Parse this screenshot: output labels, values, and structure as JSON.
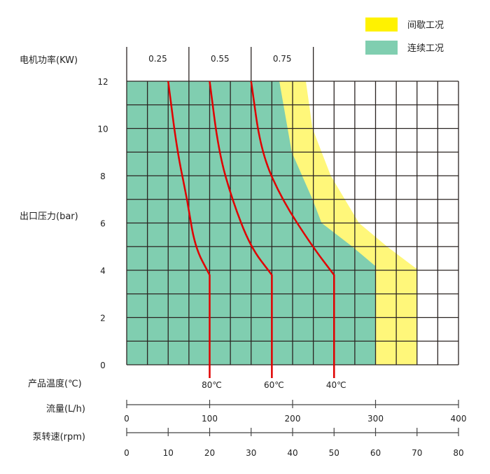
{
  "chart_data": {
    "type": "area",
    "xlabel": "流量(L/h)",
    "ylabel": "出口压力(bar)",
    "xlim": [
      0,
      400
    ],
    "ylim": [
      0,
      12
    ],
    "grid": true,
    "grid_x_step": 25,
    "grid_y_step": 1,
    "y_ticks": [
      0,
      2,
      4,
      6,
      8,
      10,
      12
    ],
    "legend_position": "top-right",
    "legend": [
      {
        "name": "间歇工况",
        "color": "#FFF200"
      },
      {
        "name": "连续工况",
        "color": "#80CEB0"
      }
    ],
    "regions": [
      {
        "name": "间歇工况",
        "color": "#FFF77A",
        "boundary": [
          [
            216,
            12
          ],
          [
            224,
            10
          ],
          [
            246,
            8
          ],
          [
            280,
            6
          ],
          [
            314,
            5
          ],
          [
            348,
            4.1
          ],
          [
            350,
            4.1
          ],
          [
            350,
            0
          ]
        ]
      },
      {
        "name": "连续工况",
        "color": "#80CEB0",
        "boundary": [
          [
            184,
            12
          ],
          [
            199,
            9
          ],
          [
            224,
            7
          ],
          [
            235,
            6
          ],
          [
            272,
            5
          ],
          [
            299,
            4.2
          ],
          [
            300,
            4.2
          ],
          [
            300,
            0
          ]
        ]
      }
    ],
    "curves": [
      {
        "name": "80℃",
        "color": "#E00000",
        "points": [
          [
            50,
            12
          ],
          [
            61,
            9
          ],
          [
            73,
            7
          ],
          [
            82,
            5
          ],
          [
            100,
            3.8
          ]
        ],
        "flow": 100
      },
      {
        "name": "60℃",
        "color": "#E00000",
        "points": [
          [
            100,
            12
          ],
          [
            111,
            9
          ],
          [
            127,
            7
          ],
          [
            149,
            5
          ],
          [
            175,
            3.8
          ]
        ],
        "flow": 175
      },
      {
        "name": "40℃",
        "color": "#E00000",
        "points": [
          [
            150,
            12
          ],
          [
            162,
            9
          ],
          [
            187,
            7
          ],
          [
            224,
            5
          ],
          [
            250,
            3.8
          ]
        ],
        "flow": 250
      }
    ],
    "power_axis": {
      "label": "电机功率(KW)",
      "segments": [
        {
          "label": "0.25",
          "from": 0,
          "to": 75
        },
        {
          "label": "0.55",
          "from": 75,
          "to": 150
        },
        {
          "label": "0.75",
          "from": 150,
          "to": 225
        }
      ]
    },
    "temperature_axis": {
      "label": "产品温度(℃)"
    },
    "flow_axis": {
      "label": "流量(L/h)",
      "ticks": [
        0,
        100,
        200,
        300,
        400
      ]
    },
    "rpm_axis": {
      "label": "泵转速(rpm)",
      "ticks": [
        0,
        10,
        20,
        30,
        40,
        50,
        60,
        70,
        80
      ],
      "max": 80
    }
  }
}
